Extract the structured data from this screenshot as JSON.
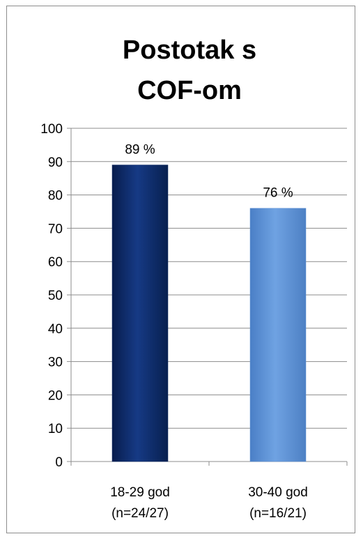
{
  "chart_data": {
    "type": "bar",
    "title_lines": [
      "Postotak s",
      "COF-om"
    ],
    "categories": [
      [
        "18-29 god",
        "(n=24/27)"
      ],
      [
        "30-40 god",
        "(n=16/21)"
      ]
    ],
    "values": [
      89,
      76
    ],
    "data_labels": [
      "89 %",
      "76 %"
    ],
    "ylim": [
      0,
      100
    ],
    "yticks": [
      "0",
      "10",
      "20",
      "30",
      "40",
      "50",
      "60",
      "70",
      "80",
      "90",
      "100"
    ],
    "grid": true,
    "legend": "none",
    "colors": [
      "#0e2a66",
      "#5b8fd4"
    ]
  }
}
